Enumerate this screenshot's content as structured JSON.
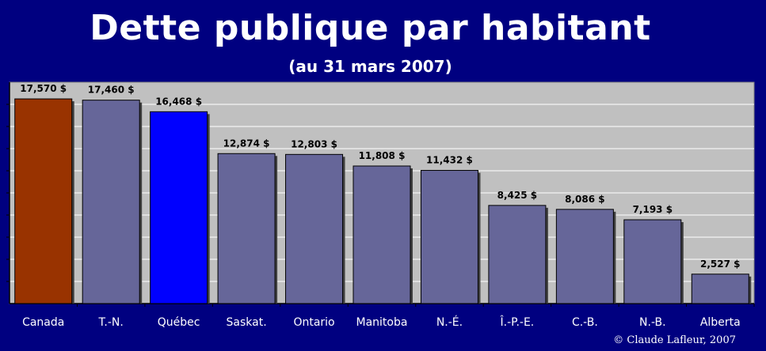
{
  "chart_data": {
    "type": "bar",
    "title": "Dette publique par habitant",
    "subtitle": "(au 31 mars 2007)",
    "categories": [
      "Canada",
      "T.-N.",
      "Québec",
      "Saskat.",
      "Ontario",
      "Manitoba",
      "N.-É.",
      "Î.-P.-E.",
      "C.-B.",
      "N.-B.",
      "Alberta"
    ],
    "values": [
      17570,
      17460,
      16468,
      12874,
      12803,
      11808,
      11432,
      8425,
      8086,
      7193,
      2527
    ],
    "value_labels": [
      "17,570 $",
      "17,460 $",
      "16,468 $",
      "12,874 $",
      "12,803 $",
      "11,808 $",
      "11,432 $",
      "8,425 $",
      "8,086 $",
      "7,193 $",
      "2,527 $"
    ],
    "ylim": [
      0,
      19000
    ],
    "grid": true,
    "colors": {
      "default": "#666699",
      "Canada": "#993300",
      "Québec": "#0000ff",
      "plot_background": "#c0c0c0",
      "page_background": "#000080",
      "grid": "#ffffff"
    }
  },
  "credit": "© Claude Lafleur, 2007"
}
